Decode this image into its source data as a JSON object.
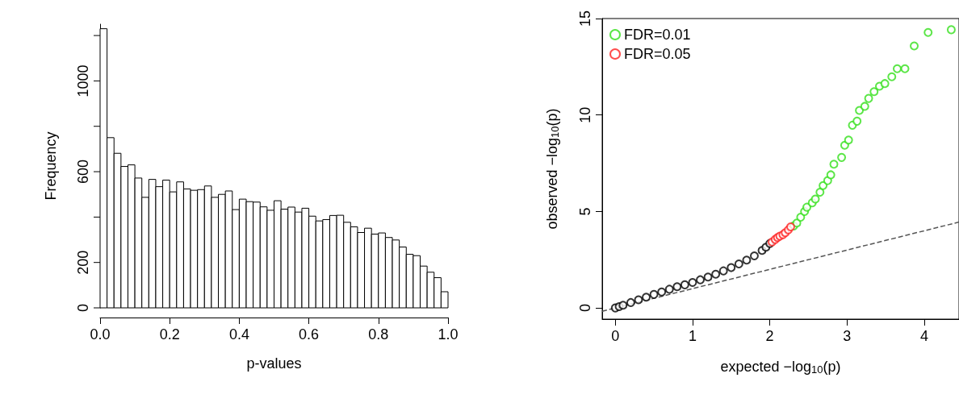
{
  "chart_data": [
    {
      "type": "histogram",
      "xlabel": "p-values",
      "ylabel": "Frequency",
      "color": "#ffffff",
      "bins": [
        0,
        0.02,
        0.04,
        0.06,
        0.08,
        0.1,
        0.12,
        0.14,
        0.16,
        0.18,
        0.2,
        0.22,
        0.24,
        0.26,
        0.28,
        0.3,
        0.32,
        0.34,
        0.36,
        0.38,
        0.4,
        0.42,
        0.44,
        0.46,
        0.48,
        0.5,
        0.52,
        0.54,
        0.56,
        0.58,
        0.6,
        0.62,
        0.64,
        0.66,
        0.68,
        0.7,
        0.72,
        0.74,
        0.76,
        0.78,
        0.8,
        0.82,
        0.84,
        0.86,
        0.88,
        0.9,
        0.92,
        0.94,
        0.96,
        0.98,
        1.0
      ],
      "values": [
        1230,
        750,
        681,
        623,
        630,
        572,
        487,
        566,
        534,
        563,
        511,
        555,
        524,
        518,
        521,
        537,
        487,
        500,
        515,
        433,
        479,
        468,
        466,
        445,
        430,
        472,
        435,
        444,
        422,
        439,
        404,
        383,
        389,
        407,
        408,
        377,
        357,
        332,
        351,
        325,
        330,
        310,
        299,
        268,
        236,
        230,
        184,
        157,
        133,
        71
      ],
      "xlim": [
        0,
        1
      ],
      "xticks": [
        {
          "value": 0,
          "label": "0.0"
        },
        {
          "value": 0.2,
          "label": "0.2"
        },
        {
          "value": 0.4,
          "label": "0.4"
        },
        {
          "value": 0.6,
          "label": "0.6"
        },
        {
          "value": 0.8,
          "label": "0.8"
        },
        {
          "value": 1,
          "label": "1.0"
        }
      ],
      "ylim": [
        0,
        1250
      ],
      "yticks": [
        0,
        200,
        {
          "value": 400,
          "label": null
        },
        600,
        {
          "value": 800,
          "label": null
        },
        1000,
        {
          "value": 1200,
          "label": null
        }
      ],
      "grid": false
    },
    {
      "type": "scatter",
      "xlabel": "expected −log$_{10}$(p)",
      "ylabel": "observed −log$_{10}$(p)",
      "marker": "circle",
      "legend": "top left",
      "grid": false,
      "xlim": [
        -0.17,
        4.45
      ],
      "xticks": [
        0,
        1,
        2,
        3,
        4
      ],
      "ylim": [
        -0.58,
        15
      ],
      "yticks": [
        0,
        5,
        10,
        15
      ],
      "series": [
        {
          "type": "line",
          "marker": "none",
          "line_style": "dashed",
          "color": "#555555",
          "x": [
            -0.17,
            4.45
          ],
          "values": [
            -0.17,
            4.45
          ]
        },
        {
          "color": "#000000",
          "x": [
            0,
            0.05,
            0.1,
            0.2,
            0.3,
            0.4,
            0.5,
            0.6,
            0.7,
            0.8,
            0.9,
            1.0,
            1.1,
            1.2,
            1.3,
            1.4,
            1.5,
            1.6,
            1.7,
            1.8,
            1.9,
            1.95,
            2.0
          ],
          "values": [
            0.0,
            0.07,
            0.14,
            0.28,
            0.42,
            0.56,
            0.7,
            0.83,
            0.97,
            1.1,
            1.2,
            1.32,
            1.46,
            1.6,
            1.75,
            1.92,
            2.09,
            2.28,
            2.48,
            2.7,
            2.98,
            3.15,
            3.34
          ]
        },
        {
          "name": "FDR=0.01",
          "color": "#33e01a",
          "x": [
            2.31,
            2.35,
            2.4,
            2.45,
            2.48,
            2.55,
            2.59,
            2.65,
            2.69,
            2.75,
            2.79,
            2.83,
            2.93,
            2.97,
            3.02,
            3.07,
            3.13,
            3.16,
            3.23,
            3.28,
            3.35,
            3.42,
            3.49,
            3.58,
            3.65,
            3.75,
            3.87,
            4.05,
            4.35
          ],
          "values": [
            4.25,
            4.4,
            4.7,
            5.0,
            5.22,
            5.45,
            5.64,
            6.0,
            6.34,
            6.6,
            6.9,
            7.45,
            7.8,
            8.43,
            8.7,
            9.47,
            9.68,
            10.24,
            10.45,
            10.86,
            11.21,
            11.49,
            11.63,
            11.98,
            12.4,
            12.4,
            13.58,
            14.28,
            14.42
          ]
        },
        {
          "name": "FDR=0.05",
          "color": "#ff2020",
          "x": [
            2.03,
            2.07,
            2.1,
            2.13,
            2.17,
            2.2,
            2.24,
            2.27
          ],
          "values": [
            3.42,
            3.55,
            3.65,
            3.72,
            3.8,
            3.9,
            4.05,
            4.2
          ]
        }
      ]
    }
  ]
}
